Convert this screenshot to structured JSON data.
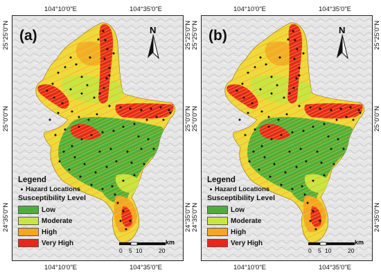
{
  "panels": [
    {
      "label": "(a)"
    },
    {
      "label": "(b)"
    }
  ],
  "ticks": {
    "top_left": "104°10'0\"E",
    "top_right": "104°35'0\"E",
    "bottom_left": "104°10'0\"E",
    "bottom_right": "104°35'0\"E",
    "lat_top": "25°25'0\"N",
    "lat_mid": "25°0'0\"N",
    "lat_bottom": "24°35'0\"N"
  },
  "north_label": "N",
  "legend": {
    "title": "Legend",
    "hazard": "Hazard Locations",
    "subtitle": "Susceptibility Level",
    "classes": [
      {
        "label": "Low",
        "color": "#4caf3c"
      },
      {
        "label": "Moderate",
        "color": "#c8e641"
      },
      {
        "label": "High",
        "color": "#f6a623"
      },
      {
        "label": "Very High",
        "color": "#e8261c"
      }
    ]
  },
  "scale": {
    "unit": "km",
    "ticks": [
      "0",
      "5",
      "10",
      "20"
    ]
  }
}
